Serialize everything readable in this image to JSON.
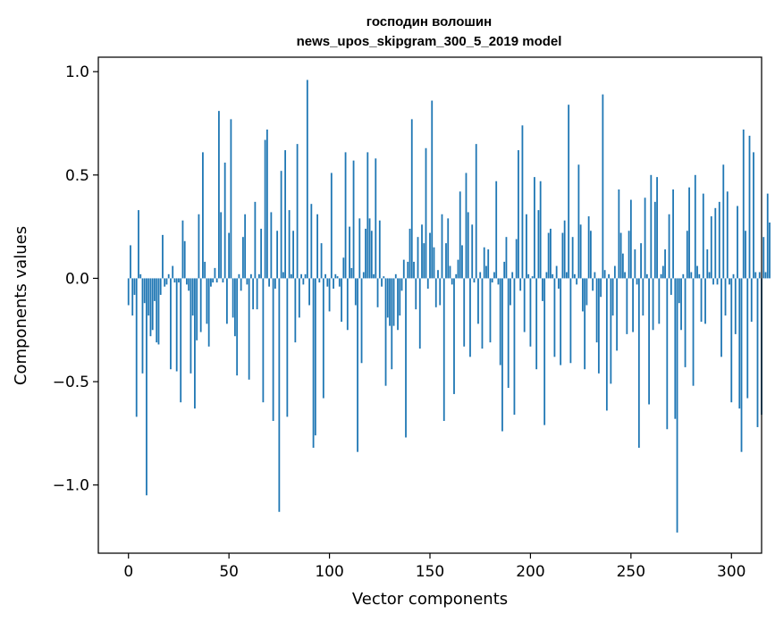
{
  "chart_data": {
    "type": "bar",
    "title_line1": "господин волошин",
    "title_line2": "news_upos_skipgram_300_5_2019 model",
    "xlabel": "Vector components",
    "ylabel": "Components values",
    "xlim": [
      -15,
      315
    ],
    "ylim": [
      -1.33,
      1.07
    ],
    "xticks": [
      0,
      50,
      100,
      150,
      200,
      250,
      300
    ],
    "xtick_labels": [
      "0",
      "50",
      "100",
      "150",
      "200",
      "250",
      "300"
    ],
    "yticks": [
      -1.0,
      -0.5,
      0.0,
      0.5,
      1.0
    ],
    "ytick_labels": [
      "−1.0",
      "−0.5",
      "0.0",
      "0.5",
      "1.0"
    ],
    "color": "#1f77b4",
    "grid": false,
    "values": [
      -0.13,
      0.16,
      -0.18,
      -0.08,
      -0.67,
      0.33,
      0.02,
      -0.46,
      -0.12,
      -1.05,
      -0.18,
      -0.28,
      -0.25,
      -0.11,
      -0.31,
      -0.32,
      -0.08,
      0.21,
      -0.04,
      -0.03,
      0.02,
      -0.44,
      0.06,
      -0.02,
      -0.45,
      -0.02,
      -0.6,
      0.28,
      0.18,
      -0.03,
      -0.06,
      -0.46,
      -0.18,
      -0.63,
      -0.3,
      0.31,
      -0.26,
      0.61,
      0.08,
      -0.22,
      -0.33,
      -0.04,
      -0.02,
      0.05,
      -0.02,
      0.81,
      0.32,
      -0.02,
      0.56,
      -0.22,
      0.22,
      0.77,
      -0.19,
      -0.28,
      -0.47,
      0.02,
      -0.06,
      0.2,
      0.31,
      -0.03,
      -0.49,
      0.02,
      -0.15,
      0.37,
      -0.15,
      0.02,
      0.24,
      -0.6,
      0.67,
      0.72,
      -0.04,
      0.32,
      -0.69,
      -0.05,
      0.23,
      -1.13,
      0.52,
      0.03,
      0.62,
      -0.67,
      0.33,
      0.02,
      0.23,
      -0.31,
      0.65,
      -0.19,
      0.02,
      -0.03,
      0.02,
      0.96,
      -0.13,
      0.36,
      -0.82,
      -0.76,
      0.31,
      -0.02,
      0.17,
      -0.58,
      0.02,
      -0.04,
      -0.16,
      0.51,
      -0.05,
      0.02,
      0.01,
      -0.04,
      -0.21,
      0.1,
      0.61,
      -0.25,
      0.25,
      0.05,
      0.57,
      -0.13,
      -0.84,
      0.29,
      -0.41,
      0.03,
      0.24,
      0.61,
      0.29,
      0.23,
      0.02,
      0.58,
      -0.14,
      0.28,
      -0.04,
      0.01,
      -0.52,
      -0.19,
      -0.23,
      -0.44,
      -0.23,
      0.02,
      -0.25,
      -0.18,
      -0.06,
      0.09,
      -0.77,
      0.08,
      0.24,
      0.77,
      0.08,
      -0.15,
      0.2,
      -0.34,
      0.26,
      0.17,
      0.63,
      -0.05,
      0.22,
      0.86,
      0.15,
      -0.14,
      0.04,
      -0.13,
      0.31,
      -0.69,
      0.17,
      0.29,
      0.06,
      -0.03,
      -0.56,
      0.02,
      0.09,
      0.42,
      0.16,
      -0.33,
      0.51,
      0.32,
      -0.38,
      0.26,
      -0.02,
      0.65,
      -0.22,
      0.03,
      -0.34,
      0.15,
      0.06,
      0.14,
      -0.31,
      -0.02,
      0.03,
      0.47,
      -0.03,
      -0.42,
      -0.74,
      0.08,
      0.2,
      -0.53,
      -0.13,
      0.03,
      -0.66,
      0.19,
      0.62,
      -0.06,
      0.74,
      -0.26,
      0.31,
      0.02,
      -0.33,
      0.01,
      0.49,
      -0.44,
      0.33,
      0.47,
      -0.11,
      -0.71,
      0.03,
      0.22,
      0.24,
      0.02,
      -0.38,
      0.06,
      -0.05,
      -0.42,
      0.22,
      0.28,
      0.03,
      0.84,
      -0.41,
      0.2,
      0.02,
      -0.03,
      0.55,
      0.26,
      -0.16,
      -0.44,
      -0.13,
      0.3,
      0.23,
      -0.06,
      0.03,
      -0.31,
      -0.46,
      -0.09,
      0.89,
      0.04,
      -0.64,
      0.02,
      -0.51,
      -0.18,
      0.06,
      -0.35,
      0.43,
      0.22,
      0.12,
      0.03,
      -0.27,
      0.23,
      0.38,
      -0.26,
      0.14,
      -0.03,
      -0.82,
      0.17,
      -0.18,
      0.39,
      0.02,
      -0.61,
      0.5,
      -0.25,
      0.37,
      0.49,
      -0.22,
      0.02,
      0.06,
      0.14,
      -0.73,
      0.31,
      -0.08,
      0.43,
      -0.68,
      -1.23,
      -0.12,
      -0.25,
      0.02,
      -0.43,
      0.23,
      0.44,
      0.03,
      -0.52,
      0.5,
      0.06,
      0.02,
      -0.21,
      0.41,
      -0.22,
      0.14,
      0.03,
      0.3,
      -0.03,
      0.34,
      -0.03,
      0.37,
      -0.38,
      0.55,
      -0.18,
      0.42,
      -0.03,
      -0.6,
      0.02,
      -0.27,
      0.35,
      -0.63,
      -0.84,
      0.72,
      0.23,
      -0.58,
      0.69,
      -0.21,
      0.61,
      0.03,
      -0.72,
      0.03,
      -0.66,
      0.2,
      0.03,
      0.41,
      0.27
    ]
  }
}
